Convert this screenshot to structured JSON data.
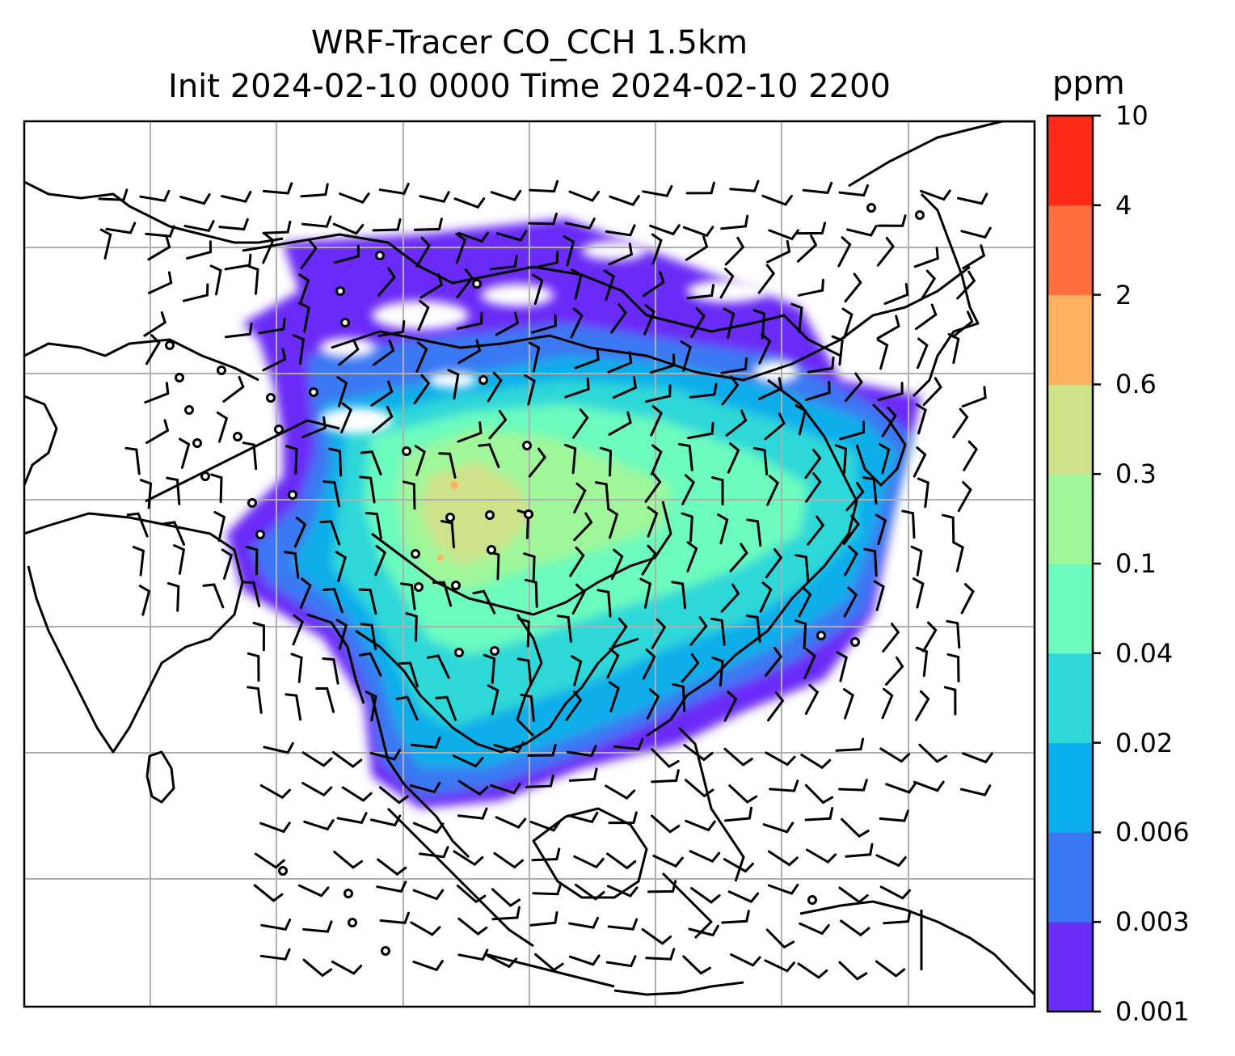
{
  "title": {
    "line1": "WRF-Tracer CO_CCH 1.5km",
    "line2": "Init 2024-02-10 0000 Time 2024-02-10 2200"
  },
  "colorbar": {
    "unit": "ppm",
    "ticks": [
      "0.001",
      "0.003",
      "0.006",
      "0.02",
      "0.04",
      "0.1",
      "0.3",
      "0.6",
      "2",
      "4",
      "10"
    ],
    "colors": [
      "#6a2cf7",
      "#3a78f3",
      "#0aaeea",
      "#2ed8d8",
      "#6cfcbe",
      "#9ff79a",
      "#cfe18a",
      "#fdb262",
      "#ff6e3c",
      "#fe2a17"
    ]
  },
  "map": {
    "contour_shading": "tracer concentration",
    "overlay": "wind barbs",
    "graticule": true,
    "coastline_color": "#000000"
  }
}
